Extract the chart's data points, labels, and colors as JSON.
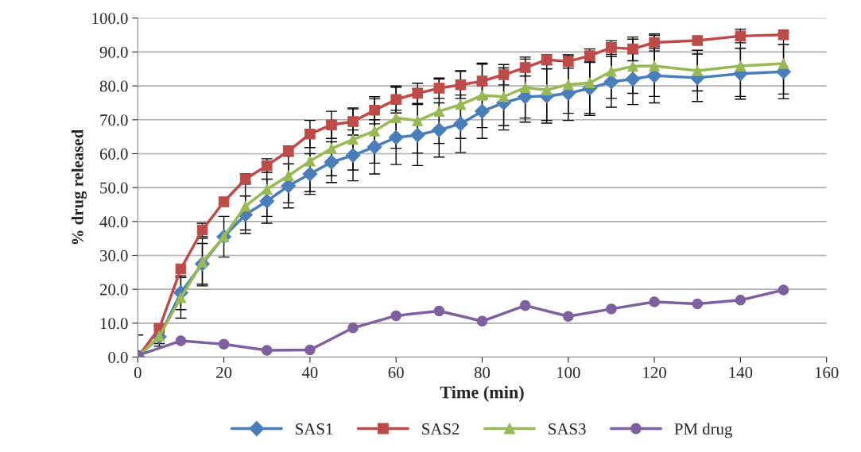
{
  "chart_data": {
    "type": "line",
    "xlabel": "Time (min)",
    "ylabel": "% drug released",
    "xlim": [
      0,
      160
    ],
    "xticks": [
      0,
      20,
      40,
      60,
      80,
      100,
      120,
      140,
      160
    ],
    "ylim": [
      0,
      100
    ],
    "yticks": [
      {
        "value": 0,
        "label": "0.0"
      },
      {
        "value": 10,
        "label": "10.0"
      },
      {
        "value": 20,
        "label": "20.0"
      },
      {
        "value": 30,
        "label": "30.0"
      },
      {
        "value": 40,
        "label": "40.0"
      },
      {
        "value": 50,
        "label": "50.0"
      },
      {
        "value": 60,
        "label": "60.0"
      },
      {
        "value": 70,
        "label": "70.0"
      },
      {
        "value": 80,
        "label": "80.0"
      },
      {
        "value": 90,
        "label": "90.0"
      },
      {
        "value": 100,
        "label": "100.0"
      }
    ],
    "grid": "y",
    "legend": "bottom",
    "series": [
      {
        "name": "SAS1",
        "color": "#4a7ebb",
        "marker": "diamond",
        "x": [
          0,
          5,
          10,
          15,
          20,
          25,
          30,
          35,
          40,
          45,
          50,
          55,
          60,
          65,
          70,
          75,
          80,
          85,
          90,
          95,
          100,
          105,
          110,
          115,
          120,
          130,
          140,
          150
        ],
        "values": [
          0,
          6,
          19,
          27.5,
          35.5,
          42,
          46,
          50.5,
          54,
          57.5,
          59.5,
          62,
          64.8,
          65.5,
          67,
          68.8,
          72.5,
          75,
          76.8,
          77,
          77.8,
          79.3,
          81.2,
          82,
          83,
          82.4,
          83.6,
          84.2
        ],
        "errors": [
          null,
          2,
          5,
          6,
          null,
          5.5,
          6.5,
          6.5,
          6,
          6,
          7.5,
          8,
          8,
          9,
          8,
          8.5,
          8,
          8,
          7.5,
          8,
          8,
          8,
          7.5,
          7.5,
          8,
          7,
          7.5,
          8
        ]
      },
      {
        "name": "SAS2",
        "color": "#be4b48",
        "marker": "square",
        "x": [
          0,
          5,
          10,
          15,
          20,
          25,
          30,
          35,
          40,
          45,
          50,
          55,
          60,
          65,
          70,
          75,
          80,
          85,
          90,
          95,
          100,
          105,
          110,
          115,
          120,
          130,
          140,
          150
        ],
        "values": [
          0,
          8.5,
          26,
          37.5,
          45.8,
          52.5,
          56.5,
          60.8,
          65.8,
          68.5,
          69.5,
          72.8,
          76,
          77.8,
          79.3,
          80.3,
          81.4,
          83.3,
          85.4,
          87.7,
          87.2,
          88.9,
          91.3,
          90.9,
          92.8,
          93.4,
          94.7,
          95.1
        ],
        "errors": [
          null,
          null,
          null,
          2,
          null,
          1.5,
          2,
          1.5,
          4,
          4,
          4,
          4,
          4,
          3,
          3,
          4,
          5,
          3,
          2.5,
          1.5,
          2,
          2,
          2,
          3.5,
          2.5,
          null,
          2,
          null
        ]
      },
      {
        "name": "SAS3",
        "color": "#98b954",
        "marker": "triangle",
        "x": [
          0,
          5,
          10,
          15,
          20,
          25,
          30,
          35,
          40,
          45,
          50,
          55,
          60,
          65,
          70,
          75,
          80,
          85,
          90,
          95,
          100,
          105,
          110,
          115,
          120,
          130,
          140,
          150
        ],
        "values": [
          0,
          6.2,
          17.5,
          28,
          35.5,
          44.5,
          49.5,
          53.5,
          57.8,
          61.5,
          64.2,
          66.7,
          70.6,
          69.7,
          72.5,
          74.5,
          77.2,
          76.8,
          79.5,
          78.8,
          80.4,
          80.9,
          84.3,
          85.8,
          85.9,
          84.5,
          85.9,
          86.6
        ],
        "errors": [
          6.5,
          3,
          6,
          7,
          6,
          7,
          8,
          8,
          9,
          8,
          9,
          9.5,
          9,
          9.5,
          9.5,
          10,
          9.5,
          8.5,
          9,
          9,
          8.5,
          9,
          8,
          8,
          9,
          6,
          9,
          9
        ]
      },
      {
        "name": "PM drug",
        "color": "#7d60a0",
        "marker": "circle",
        "x": [
          0,
          10,
          20,
          30,
          40,
          50,
          60,
          70,
          80,
          90,
          100,
          110,
          120,
          130,
          140,
          150
        ],
        "values": [
          0.5,
          4.8,
          3.8,
          2,
          2.1,
          8.6,
          12.2,
          13.6,
          10.6,
          15.2,
          12,
          14.2,
          16.3,
          15.7,
          16.8,
          19.8
        ]
      }
    ]
  }
}
